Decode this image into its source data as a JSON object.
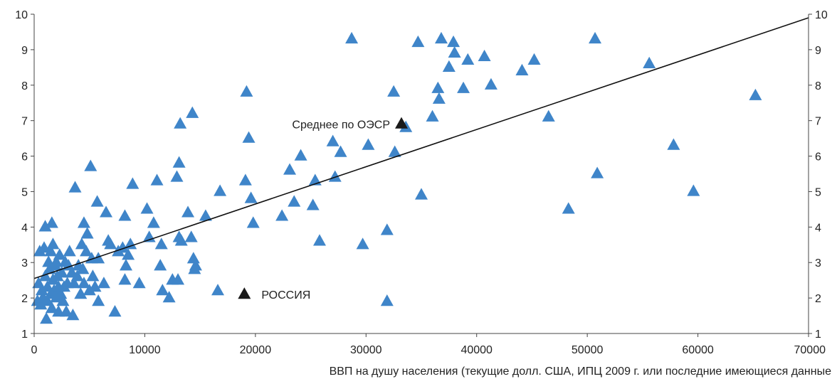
{
  "chart_data": {
    "type": "scatter",
    "xlabel": "ВВП на душу населения (текущие долл. США, ИПЦ 2009 г. или последние имеющиеся данные",
    "ylabel": "",
    "xlim": [
      0,
      70000
    ],
    "ylim": [
      1,
      10
    ],
    "xticks": [
      "0",
      "10000",
      "20000",
      "30000",
      "40000",
      "50000",
      "60000",
      "70000"
    ],
    "yticks": [
      "1",
      "2",
      "3",
      "4",
      "5",
      "6",
      "7",
      "8",
      "9",
      "10"
    ],
    "grid": false,
    "colors": {
      "points": "#3f85c9",
      "highlight": "#1a1a1a",
      "line": "#111111",
      "axis": "#444444"
    },
    "trendline": {
      "x": [
        0,
        70000
      ],
      "y": [
        2.55,
        9.9
      ]
    },
    "annotations": [
      {
        "label": "Среднее по ОЭСР",
        "x": 33200,
        "y": 6.9
      },
      {
        "label": "РОССИЯ",
        "x": 19000,
        "y": 2.1
      }
    ],
    "points": [
      [
        300,
        1.9
      ],
      [
        400,
        2.4
      ],
      [
        500,
        3.3
      ],
      [
        600,
        1.8
      ],
      [
        700,
        2.2
      ],
      [
        800,
        2.0
      ],
      [
        900,
        3.4
      ],
      [
        1000,
        2.6
      ],
      [
        1000,
        4.0
      ],
      [
        1100,
        1.4
      ],
      [
        1200,
        2.3
      ],
      [
        1200,
        1.9
      ],
      [
        1300,
        3.0
      ],
      [
        1400,
        2.8
      ],
      [
        1500,
        3.3
      ],
      [
        1500,
        2.1
      ],
      [
        1600,
        4.1
      ],
      [
        1600,
        1.7
      ],
      [
        1700,
        2.5
      ],
      [
        1700,
        3.5
      ],
      [
        1800,
        2.2
      ],
      [
        1900,
        2.9
      ],
      [
        2000,
        2.0
      ],
      [
        2000,
        3.0
      ],
      [
        2100,
        2.6
      ],
      [
        2200,
        1.6
      ],
      [
        2200,
        2.3
      ],
      [
        2300,
        3.2
      ],
      [
        2400,
        2.1
      ],
      [
        2500,
        2.7
      ],
      [
        2600,
        1.9
      ],
      [
        2700,
        2.3
      ],
      [
        2800,
        3.0
      ],
      [
        2900,
        1.6
      ],
      [
        3000,
        2.4
      ],
      [
        3100,
        2.9
      ],
      [
        3200,
        3.3
      ],
      [
        3400,
        2.7
      ],
      [
        3500,
        1.5
      ],
      [
        3600,
        2.4
      ],
      [
        3700,
        5.1
      ],
      [
        3900,
        2.6
      ],
      [
        4000,
        2.9
      ],
      [
        4200,
        2.1
      ],
      [
        4300,
        3.5
      ],
      [
        4400,
        2.8
      ],
      [
        4500,
        4.1
      ],
      [
        4500,
        2.4
      ],
      [
        4700,
        3.3
      ],
      [
        4800,
        3.8
      ],
      [
        5000,
        2.2
      ],
      [
        5100,
        5.7
      ],
      [
        5200,
        3.1
      ],
      [
        5300,
        2.6
      ],
      [
        5500,
        2.3
      ],
      [
        5700,
        4.7
      ],
      [
        5800,
        1.9
      ],
      [
        5800,
        3.1
      ],
      [
        6300,
        2.4
      ],
      [
        6500,
        4.4
      ],
      [
        6700,
        3.6
      ],
      [
        6900,
        3.5
      ],
      [
        7300,
        1.6
      ],
      [
        7600,
        3.3
      ],
      [
        8000,
        3.4
      ],
      [
        8200,
        4.3
      ],
      [
        8200,
        2.5
      ],
      [
        8300,
        2.9
      ],
      [
        8500,
        3.2
      ],
      [
        8700,
        3.5
      ],
      [
        8900,
        5.2
      ],
      [
        9500,
        2.4
      ],
      [
        10200,
        4.5
      ],
      [
        10400,
        3.7
      ],
      [
        10800,
        4.1
      ],
      [
        11100,
        5.3
      ],
      [
        11400,
        2.9
      ],
      [
        11500,
        3.5
      ],
      [
        11600,
        2.2
      ],
      [
        12200,
        2.0
      ],
      [
        12500,
        2.5
      ],
      [
        12900,
        5.4
      ],
      [
        13000,
        2.5
      ],
      [
        13100,
        3.7
      ],
      [
        13100,
        5.8
      ],
      [
        13200,
        6.9
      ],
      [
        13300,
        3.6
      ],
      [
        13900,
        4.4
      ],
      [
        14200,
        3.7
      ],
      [
        14300,
        7.2
      ],
      [
        14400,
        3.1
      ],
      [
        14500,
        2.8
      ],
      [
        14600,
        2.9
      ],
      [
        15500,
        4.3
      ],
      [
        16600,
        2.2
      ],
      [
        16800,
        5.0
      ],
      [
        19100,
        5.3
      ],
      [
        19200,
        7.8
      ],
      [
        19400,
        6.5
      ],
      [
        19600,
        4.8
      ],
      [
        19800,
        4.1
      ],
      [
        22400,
        4.3
      ],
      [
        23100,
        5.6
      ],
      [
        23500,
        4.7
      ],
      [
        24100,
        6.0
      ],
      [
        25200,
        4.6
      ],
      [
        25400,
        5.3
      ],
      [
        25800,
        3.6
      ],
      [
        27000,
        6.4
      ],
      [
        27200,
        5.4
      ],
      [
        27700,
        6.1
      ],
      [
        28700,
        9.3
      ],
      [
        29700,
        3.5
      ],
      [
        30200,
        6.3
      ],
      [
        31900,
        3.9
      ],
      [
        31900,
        1.9
      ],
      [
        32500,
        7.8
      ],
      [
        32600,
        6.1
      ],
      [
        33600,
        6.8
      ],
      [
        34700,
        9.2
      ],
      [
        35000,
        4.9
      ],
      [
        36000,
        7.1
      ],
      [
        36500,
        7.9
      ],
      [
        36600,
        7.6
      ],
      [
        36800,
        9.3
      ],
      [
        37500,
        8.5
      ],
      [
        37900,
        9.2
      ],
      [
        38000,
        8.9
      ],
      [
        38800,
        7.9
      ],
      [
        39200,
        8.7
      ],
      [
        40700,
        8.8
      ],
      [
        41300,
        8.0
      ],
      [
        44100,
        8.4
      ],
      [
        45200,
        8.7
      ],
      [
        46500,
        7.1
      ],
      [
        48300,
        4.5
      ],
      [
        50700,
        9.3
      ],
      [
        50900,
        5.5
      ],
      [
        55600,
        8.6
      ],
      [
        57800,
        6.3
      ],
      [
        59600,
        5.0
      ],
      [
        65200,
        7.7
      ]
    ]
  }
}
